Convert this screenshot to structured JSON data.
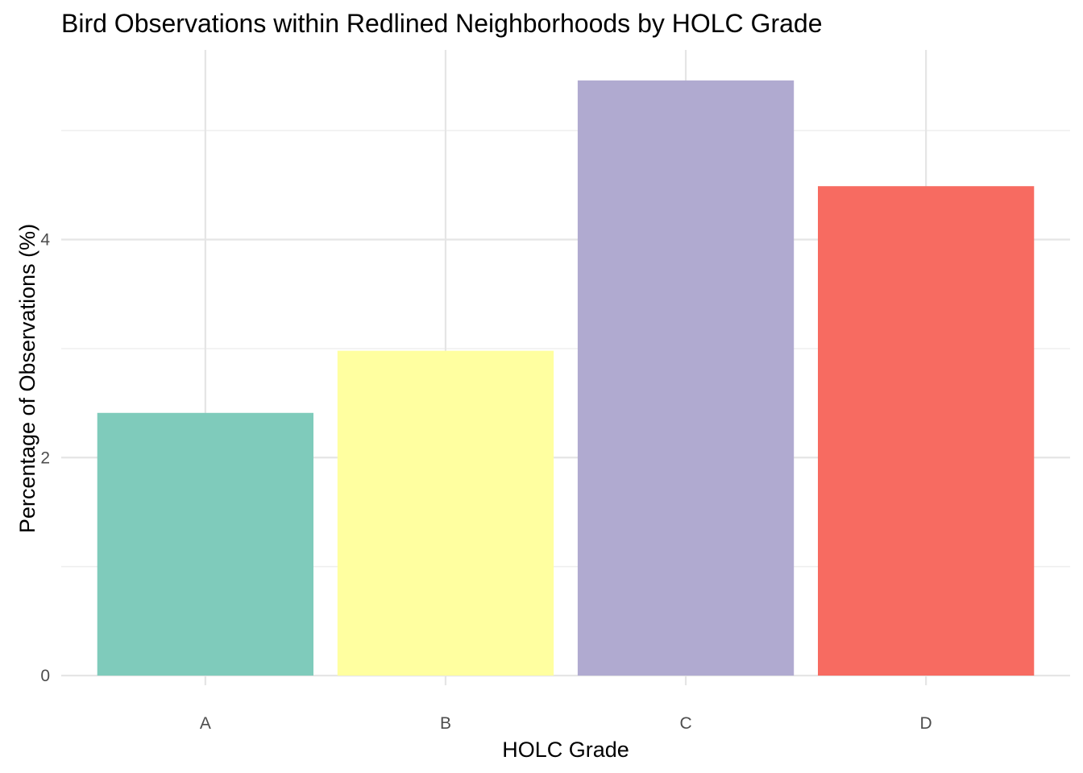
{
  "chart_data": {
    "type": "bar",
    "title": "Bird Observations within Redlined Neighborhoods by HOLC Grade",
    "xlabel": "HOLC Grade",
    "ylabel": "Percentage of Observations (%)",
    "categories": [
      "A",
      "B",
      "C",
      "D"
    ],
    "values": [
      2.41,
      2.98,
      5.46,
      4.49
    ],
    "colors": [
      "#7fcbbb",
      "#ffffa0",
      "#b0aad0",
      "#f76b61"
    ],
    "ylim": [
      0,
      5.74
    ],
    "yticks": [
      0,
      2,
      4
    ],
    "ytick_labels": [
      "0",
      "2",
      "4"
    ],
    "grid": true,
    "legend": "none"
  }
}
